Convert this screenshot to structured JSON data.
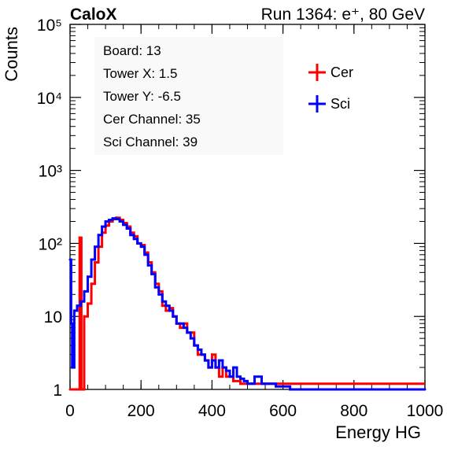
{
  "chart_data": {
    "type": "line",
    "title_left": "CaloX",
    "title_right": "Run 1364: e⁺, 80 GeV",
    "xlabel": "Energy HG",
    "ylabel": "Counts",
    "xlim": [
      0,
      1000
    ],
    "ylim": [
      1,
      100000
    ],
    "y_scale": "log",
    "grid": false,
    "legend_position": "top-right",
    "x_ticks": [
      "0",
      "200",
      "400",
      "600",
      "800",
      "1000"
    ],
    "y_ticks": [
      "1",
      "10",
      "10²",
      "10³",
      "10⁴",
      "10⁵"
    ],
    "info_box": [
      "Board: 13",
      "Tower X: 1.5",
      "Tower Y: -6.5",
      "Cer Channel: 35",
      "Sci Channel: 39"
    ],
    "series": [
      {
        "name": "Cer",
        "color": "#ff0000",
        "x": [
          0,
          15,
          22,
          27,
          32,
          40,
          50,
          60,
          70,
          80,
          90,
          100,
          110,
          120,
          130,
          140,
          150,
          160,
          170,
          180,
          190,
          200,
          210,
          220,
          230,
          240,
          250,
          260,
          270,
          280,
          290,
          300,
          310,
          320,
          330,
          340,
          350,
          360,
          370,
          380,
          390,
          400,
          410,
          420,
          430,
          440,
          460,
          480
        ],
        "y": [
          1,
          1,
          1,
          120,
          1,
          10,
          15,
          28,
          55,
          90,
          140,
          175,
          200,
          215,
          225,
          210,
          190,
          170,
          140,
          125,
          100,
          95,
          75,
          55,
          40,
          28,
          22,
          14,
          12,
          13,
          10,
          8,
          7,
          8,
          6,
          6,
          4,
          3,
          3,
          2.5,
          2,
          3,
          2,
          1.5,
          2,
          1.5,
          1.3,
          1.2
        ]
      },
      {
        "name": "Sci",
        "color": "#0000ff",
        "x": [
          0,
          3,
          6,
          12,
          20,
          30,
          40,
          50,
          60,
          70,
          80,
          90,
          100,
          110,
          120,
          130,
          140,
          150,
          160,
          170,
          180,
          190,
          200,
          210,
          220,
          230,
          240,
          250,
          260,
          270,
          280,
          290,
          300,
          310,
          320,
          330,
          340,
          350,
          360,
          370,
          380,
          390,
          400,
          410,
          420,
          430,
          440,
          450,
          460,
          470,
          480,
          490,
          500,
          520,
          540,
          560,
          580,
          600,
          620,
          640,
          660,
          680,
          700,
          720,
          740,
          760,
          780,
          800,
          850,
          900,
          950,
          1000
        ],
        "y": [
          60,
          8,
          2,
          12,
          14,
          16,
          22,
          35,
          60,
          90,
          130,
          170,
          200,
          210,
          220,
          215,
          200,
          180,
          160,
          130,
          115,
          100,
          90,
          70,
          50,
          38,
          25,
          20,
          16,
          14,
          12,
          10,
          8,
          8,
          7,
          6,
          5,
          4,
          3.5,
          3,
          2.5,
          2,
          2.5,
          2,
          2.5,
          2,
          1.8,
          1.5,
          2,
          1.5,
          1.4,
          1.3,
          1.2,
          1.5,
          1.2,
          1.2,
          1.1,
          1.1,
          1,
          1,
          1,
          1,
          1,
          1,
          1,
          1,
          1,
          1,
          1,
          1,
          1,
          1
        ]
      }
    ]
  }
}
